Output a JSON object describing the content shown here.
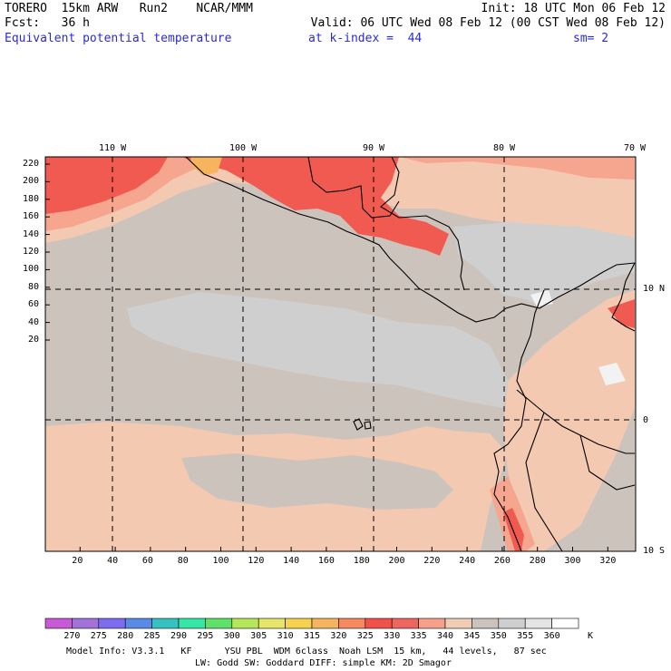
{
  "header": {
    "line1_left": "TORERO  15km ARW   Run2    NCAR/MMM",
    "line1_right": "Init: 18 UTC Mon 06 Feb 12",
    "line2_left": "Fcst:   36 h",
    "line2_right": "Valid: 06 UTC Wed 08 Feb 12 (00 CST Wed 08 Feb 12)",
    "line3_field": "Equivalent potential temperature",
    "line3_index": "at k-index =  44",
    "line3_sm": "sm= 2"
  },
  "map": {
    "lon_labels": [
      "110 W",
      "100 W",
      "90 W",
      "80 W",
      "70 W"
    ],
    "lat_labels": [
      "10 N",
      "0",
      "10 S"
    ],
    "x_ticks": [
      "20",
      "40",
      "60",
      "80",
      "100",
      "120",
      "140",
      "160",
      "180",
      "200",
      "220",
      "240",
      "260",
      "280",
      "300",
      "320"
    ],
    "y_ticks": [
      "220",
      "200",
      "180",
      "160",
      "140",
      "120",
      "100",
      "80",
      "60",
      "40",
      "20"
    ]
  },
  "colorbar": {
    "unit": "K",
    "labels": [
      "270",
      "275",
      "280",
      "285",
      "290",
      "295",
      "300",
      "305",
      "310",
      "315",
      "320",
      "325",
      "330",
      "335",
      "340",
      "345",
      "350",
      "355",
      "360"
    ],
    "colors": [
      "#c85ad6",
      "#a173d8",
      "#7e6cf0",
      "#5a8ae6",
      "#37c2c2",
      "#35e6a6",
      "#5ee06a",
      "#b6e65a",
      "#e6e66a",
      "#f6d24e",
      "#f6b45e",
      "#f68a5e",
      "#f2504a",
      "#ee6660",
      "#f4a08a",
      "#f2cdb6",
      "#cbc3bd",
      "#cfcfcf",
      "#e4e4e4",
      "#ffffff"
    ],
    "field_colors": {
      "c345": "#f3c9b2",
      "c350": "#ccc3bd",
      "c355": "#cfcfcf",
      "c360": "#f2f2f2",
      "c330": "#f05a50",
      "c335": "#f27a68",
      "c340": "#f6a58e"
    }
  },
  "footer": {
    "line1": "Model Info: V3.3.1   KF      YSU PBL  WDM 6class  Noah LSM  15 km,   44 levels,   87 sec",
    "line2": "LW: Godd SW: Goddard DIFF: simple KM: 2D Smagor"
  }
}
